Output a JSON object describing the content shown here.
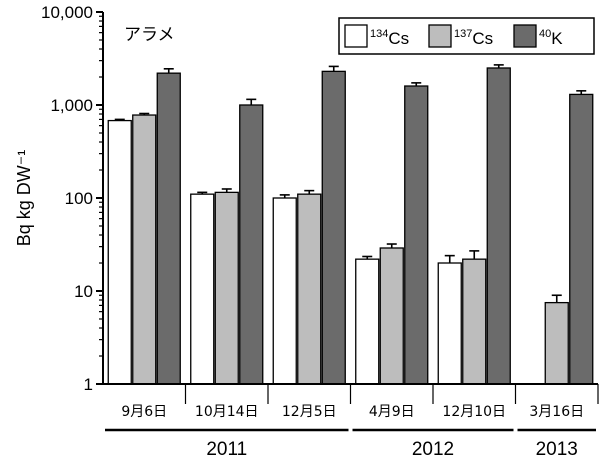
{
  "chart_data": {
    "type": "bar",
    "title": "",
    "panel_label": "アラメ",
    "ylabel": "Bq kg DW⁻¹",
    "yscale": "log",
    "ylim": [
      1,
      10000
    ],
    "yticks": [
      1,
      10,
      100,
      1000,
      10000
    ],
    "ytick_labels": [
      "1",
      "10",
      "100",
      "1,000",
      "10,000"
    ],
    "categories": [
      "9月6日",
      "10月14日",
      "12月5日",
      "4月9日",
      "12月10日",
      "3月16日"
    ],
    "year_groups": [
      {
        "label": "2011",
        "start": 0,
        "end": 2
      },
      {
        "label": "2012",
        "start": 3,
        "end": 4
      },
      {
        "label": "2013",
        "start": 5,
        "end": 5
      }
    ],
    "legend_position": "top-right",
    "series": [
      {
        "key": "cs134",
        "sup": "134",
        "base": "Cs",
        "color": "#ffffff",
        "values": [
          680,
          110,
          100,
          22,
          20,
          null
        ],
        "errors": [
          20,
          5,
          8,
          1.5,
          4,
          null
        ]
      },
      {
        "key": "cs137",
        "sup": "137",
        "base": "Cs",
        "color": "#bdbdbd",
        "values": [
          780,
          115,
          110,
          29,
          22,
          7.5
        ],
        "errors": [
          30,
          10,
          10,
          3,
          5,
          1.5
        ]
      },
      {
        "key": "k40",
        "sup": "40",
        "base": "K",
        "color": "#6b6b6b",
        "values": [
          2200,
          1000,
          2300,
          1600,
          2500,
          1300
        ],
        "errors": [
          250,
          150,
          300,
          130,
          200,
          120
        ]
      }
    ]
  }
}
